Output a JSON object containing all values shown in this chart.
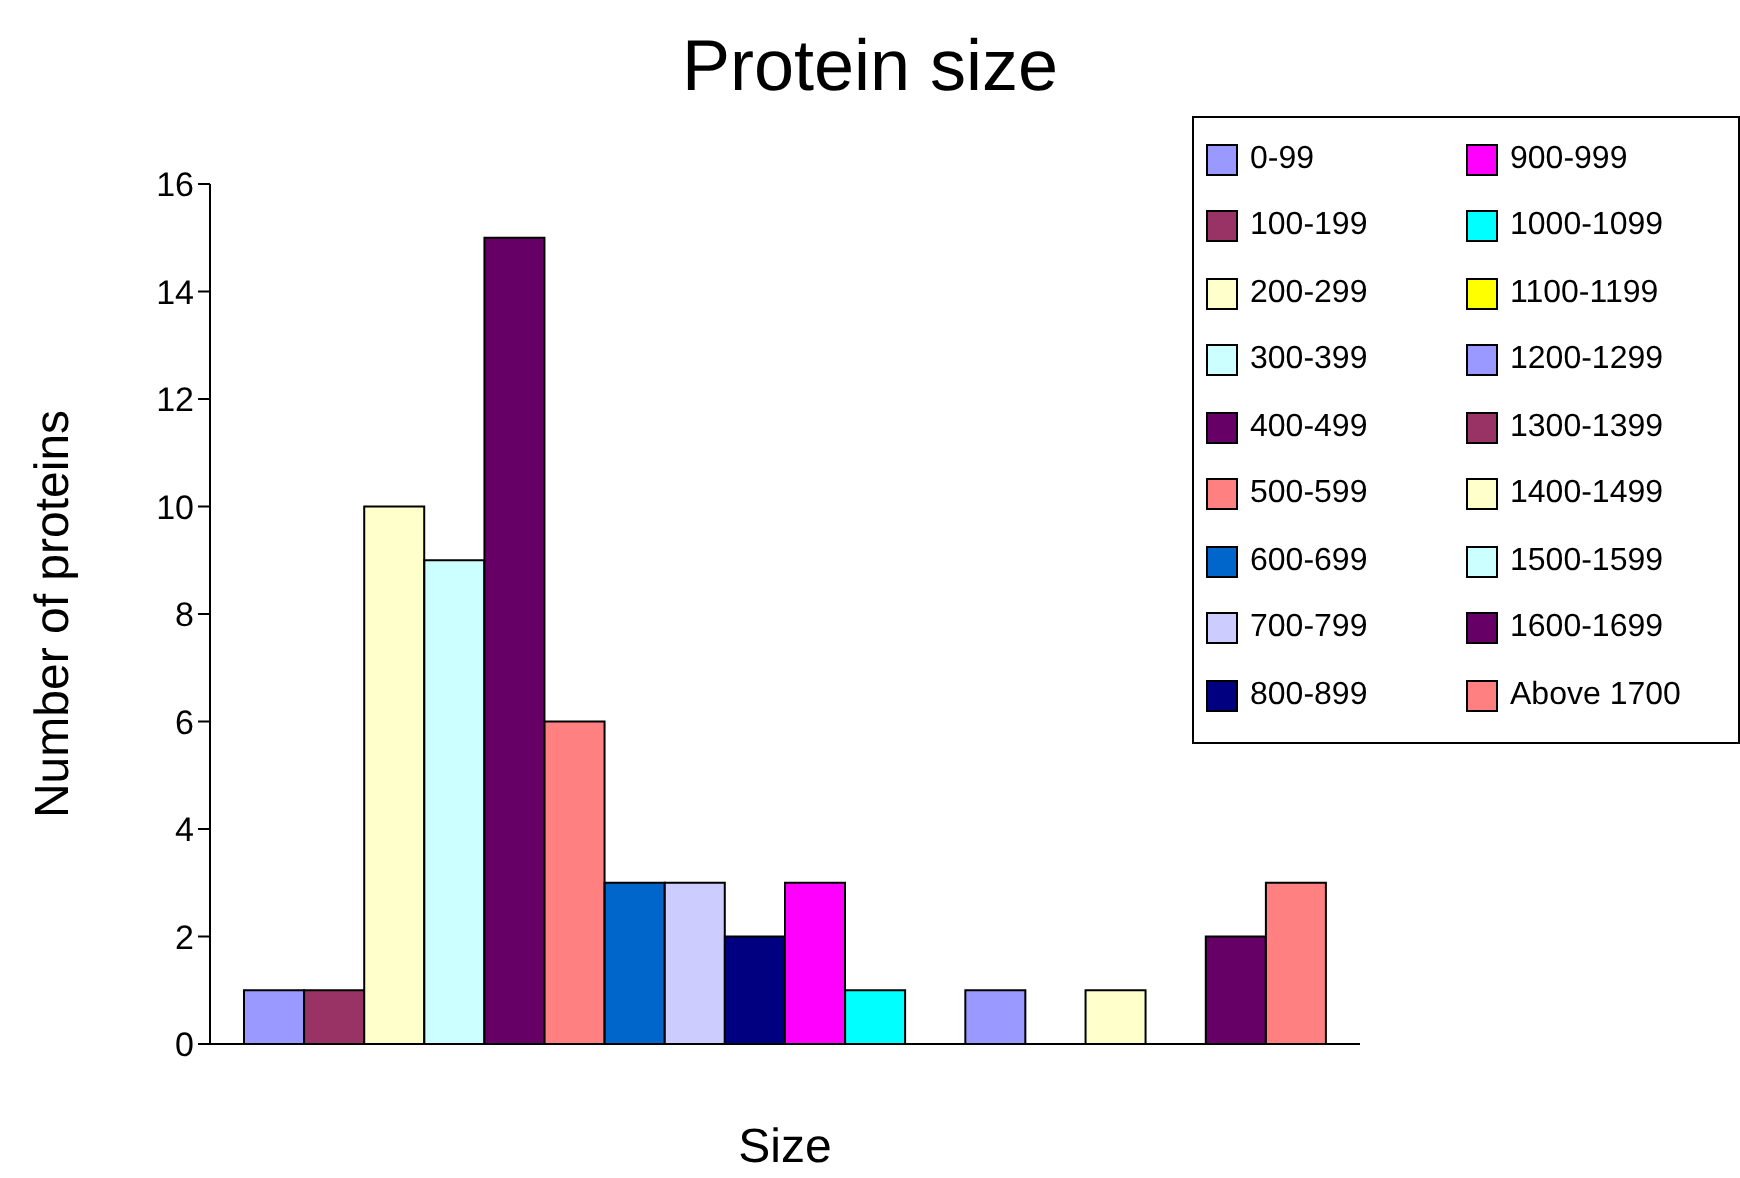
{
  "chart_data": {
    "type": "bar",
    "title": "Protein size",
    "xlabel": "Size",
    "ylabel": "Number of proteins",
    "categories": [
      null,
      null,
      null,
      null,
      null,
      null,
      null,
      null,
      null,
      null,
      null,
      null,
      null,
      null,
      null,
      null,
      null,
      null
    ],
    "ylim": [
      0,
      16
    ],
    "yticks": [
      0,
      2,
      4,
      6,
      8,
      10,
      12,
      14,
      16
    ],
    "grid": false,
    "legend": "top right",
    "series": [
      {
        "name": "0-99",
        "color": "#9999ff",
        "values": [
          1,
          null,
          null,
          null,
          null,
          null,
          null,
          null,
          null,
          null,
          null,
          null,
          null,
          null,
          null,
          null,
          null,
          null
        ]
      },
      {
        "name": "100-199",
        "color": "#993366",
        "values": [
          null,
          1,
          null,
          null,
          null,
          null,
          null,
          null,
          null,
          null,
          null,
          null,
          null,
          null,
          null,
          null,
          null,
          null
        ]
      },
      {
        "name": "200-299",
        "color": "#ffffcc",
        "values": [
          null,
          null,
          10,
          null,
          null,
          null,
          null,
          null,
          null,
          null,
          null,
          null,
          null,
          null,
          null,
          null,
          null,
          null
        ]
      },
      {
        "name": "300-399",
        "color": "#ccffff",
        "values": [
          null,
          null,
          null,
          9,
          null,
          null,
          null,
          null,
          null,
          null,
          null,
          null,
          null,
          null,
          null,
          null,
          null,
          null
        ]
      },
      {
        "name": "400-499",
        "color": "#660066",
        "values": [
          null,
          null,
          null,
          null,
          15,
          null,
          null,
          null,
          null,
          null,
          null,
          null,
          null,
          null,
          null,
          null,
          null,
          null
        ]
      },
      {
        "name": "500-599",
        "color": "#ff8080",
        "values": [
          null,
          null,
          null,
          null,
          null,
          6,
          null,
          null,
          null,
          null,
          null,
          null,
          null,
          null,
          null,
          null,
          null,
          null
        ]
      },
      {
        "name": "600-699",
        "color": "#0066cc",
        "values": [
          null,
          null,
          null,
          null,
          null,
          null,
          3,
          null,
          null,
          null,
          null,
          null,
          null,
          null,
          null,
          null,
          null,
          null
        ]
      },
      {
        "name": "700-799",
        "color": "#ccccff",
        "values": [
          null,
          null,
          null,
          null,
          null,
          null,
          null,
          3,
          null,
          null,
          null,
          null,
          null,
          null,
          null,
          null,
          null,
          null
        ]
      },
      {
        "name": "800-899",
        "color": "#000080",
        "values": [
          null,
          null,
          null,
          null,
          null,
          null,
          null,
          null,
          2,
          null,
          null,
          null,
          null,
          null,
          null,
          null,
          null,
          null
        ]
      },
      {
        "name": "900-999",
        "color": "#ff00ff",
        "values": [
          null,
          null,
          null,
          null,
          null,
          null,
          null,
          null,
          null,
          3,
          null,
          null,
          null,
          null,
          null,
          null,
          null,
          null
        ]
      },
      {
        "name": "1000-1099",
        "color": "#00ffff",
        "values": [
          null,
          null,
          null,
          null,
          null,
          null,
          null,
          null,
          null,
          null,
          1,
          null,
          null,
          null,
          null,
          null,
          null,
          null
        ]
      },
      {
        "name": "1100-1199",
        "color": "#ffff00",
        "values": [
          null,
          null,
          null,
          null,
          null,
          null,
          null,
          null,
          null,
          null,
          null,
          0,
          null,
          null,
          null,
          null,
          null,
          null
        ]
      },
      {
        "name": "1200-1299",
        "color": "#9999ff",
        "values": [
          null,
          null,
          null,
          null,
          null,
          null,
          null,
          null,
          null,
          null,
          null,
          null,
          1,
          null,
          null,
          null,
          null,
          null
        ]
      },
      {
        "name": "1300-1399",
        "color": "#993366",
        "values": [
          null,
          null,
          null,
          null,
          null,
          null,
          null,
          null,
          null,
          null,
          null,
          null,
          null,
          0,
          null,
          null,
          null,
          null
        ]
      },
      {
        "name": "1400-1499",
        "color": "#ffffcc",
        "values": [
          null,
          null,
          null,
          null,
          null,
          null,
          null,
          null,
          null,
          null,
          null,
          null,
          null,
          null,
          1,
          null,
          null,
          null
        ]
      },
      {
        "name": "1500-1599",
        "color": "#ccffff",
        "values": [
          null,
          null,
          null,
          null,
          null,
          null,
          null,
          null,
          null,
          null,
          null,
          null,
          null,
          null,
          null,
          0,
          null,
          null
        ]
      },
      {
        "name": "1600-1699",
        "color": "#660066",
        "values": [
          null,
          null,
          null,
          null,
          null,
          null,
          null,
          null,
          null,
          null,
          null,
          null,
          null,
          null,
          null,
          null,
          2,
          null
        ]
      },
      {
        "name": "Above 1700",
        "color": "#ff8080",
        "values": [
          null,
          null,
          null,
          null,
          null,
          null,
          null,
          null,
          null,
          null,
          null,
          null,
          null,
          null,
          null,
          null,
          null,
          3
        ]
      }
    ]
  }
}
